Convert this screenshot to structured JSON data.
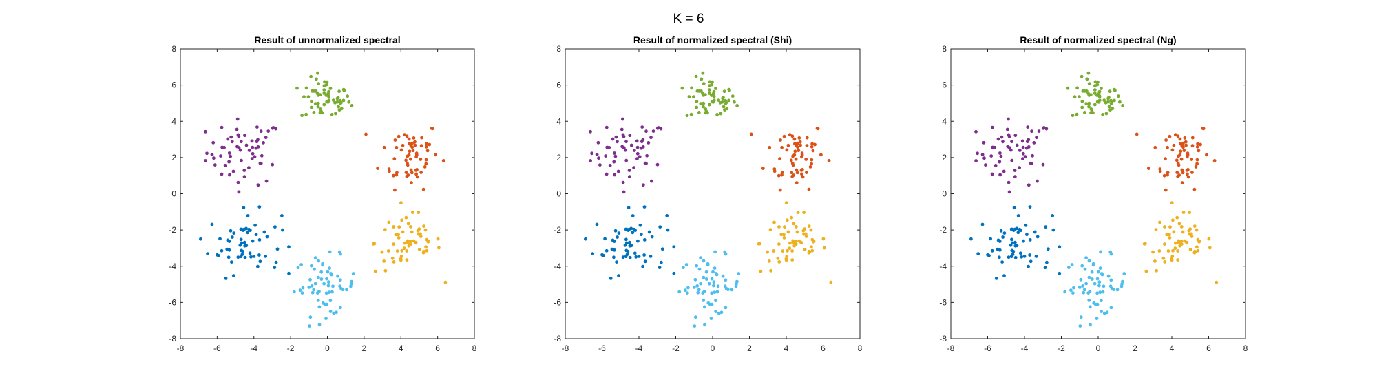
{
  "figure_title": "K = 6",
  "chart_data": [
    {
      "type": "scatter",
      "title": "Result of unnormalized spectral",
      "xlim": [
        -8,
        8
      ],
      "ylim": [
        -8,
        8
      ],
      "xticks": [
        -8,
        -6,
        -4,
        -2,
        0,
        2,
        4,
        6,
        8
      ],
      "yticks": [
        -8,
        -6,
        -4,
        -2,
        0,
        2,
        4,
        6,
        8
      ],
      "grid": false,
      "legend": "none",
      "clusters": [
        {
          "color": "#7e2f8e",
          "center": [
            -4.5,
            2.3
          ],
          "spread": [
            1.15,
            1.0
          ]
        },
        {
          "color": "#77ac30",
          "center": [
            -0.1,
            5.2
          ],
          "spread": [
            0.75,
            0.65
          ]
        },
        {
          "color": "#d95319",
          "center": [
            4.5,
            2.2
          ],
          "spread": [
            0.9,
            1.05
          ]
        },
        {
          "color": "#0072bd",
          "center": [
            -4.5,
            -2.7
          ],
          "spread": [
            1.1,
            0.95
          ]
        },
        {
          "color": "#4dbeee",
          "center": [
            -0.1,
            -5.1
          ],
          "spread": [
            0.95,
            0.9
          ]
        },
        {
          "color": "#edb120",
          "center": [
            4.4,
            -2.7
          ],
          "spread": [
            1.0,
            0.95
          ]
        }
      ]
    },
    {
      "type": "scatter",
      "title": "Result of normalized spectral (Shi)",
      "xlim": [
        -8,
        8
      ],
      "ylim": [
        -8,
        8
      ],
      "xticks": [
        -8,
        -6,
        -4,
        -2,
        0,
        2,
        4,
        6,
        8
      ],
      "yticks": [
        -8,
        -6,
        -4,
        -2,
        0,
        2,
        4,
        6,
        8
      ],
      "grid": false,
      "legend": "none",
      "clusters": [
        {
          "color": "#7e2f8e",
          "center": [
            -4.5,
            2.3
          ],
          "spread": [
            1.15,
            1.0
          ]
        },
        {
          "color": "#77ac30",
          "center": [
            -0.1,
            5.2
          ],
          "spread": [
            0.75,
            0.65
          ]
        },
        {
          "color": "#d95319",
          "center": [
            4.5,
            2.2
          ],
          "spread": [
            0.9,
            1.05
          ]
        },
        {
          "color": "#0072bd",
          "center": [
            -4.5,
            -2.7
          ],
          "spread": [
            1.1,
            0.95
          ]
        },
        {
          "color": "#4dbeee",
          "center": [
            -0.1,
            -5.1
          ],
          "spread": [
            0.95,
            0.9
          ]
        },
        {
          "color": "#edb120",
          "center": [
            4.4,
            -2.7
          ],
          "spread": [
            1.0,
            0.95
          ]
        }
      ]
    },
    {
      "type": "scatter",
      "title": "Result of normalized spectral (Ng)",
      "xlim": [
        -8,
        8
      ],
      "ylim": [
        -8,
        8
      ],
      "xticks": [
        -8,
        -6,
        -4,
        -2,
        0,
        2,
        4,
        6,
        8
      ],
      "yticks": [
        -8,
        -6,
        -4,
        -2,
        0,
        2,
        4,
        6,
        8
      ],
      "grid": false,
      "legend": "none",
      "clusters": [
        {
          "color": "#7e2f8e",
          "center": [
            -4.5,
            2.3
          ],
          "spread": [
            1.15,
            1.0
          ]
        },
        {
          "color": "#77ac30",
          "center": [
            -0.1,
            5.2
          ],
          "spread": [
            0.75,
            0.65
          ]
        },
        {
          "color": "#d95319",
          "center": [
            4.5,
            2.2
          ],
          "spread": [
            0.9,
            1.05
          ]
        },
        {
          "color": "#0072bd",
          "center": [
            -4.5,
            -2.7
          ],
          "spread": [
            1.1,
            0.95
          ]
        },
        {
          "color": "#4dbeee",
          "center": [
            -0.1,
            -5.1
          ],
          "spread": [
            0.95,
            0.9
          ]
        },
        {
          "color": "#edb120",
          "center": [
            4.4,
            -2.7
          ],
          "spread": [
            1.0,
            0.95
          ]
        }
      ]
    }
  ]
}
